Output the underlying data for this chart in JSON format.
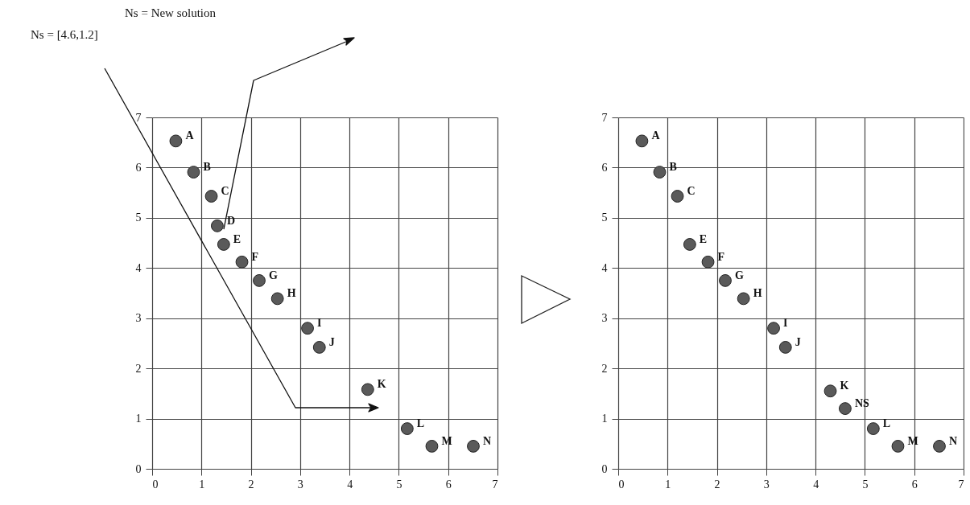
{
  "chart_data": [
    {
      "type": "scatter",
      "annotations": [
        "Ns = New solution",
        "Ns = [4.6,1.2]",
        {
          "text": "A",
          "x": 0.48,
          "y": 6.53
        },
        {
          "text": "B",
          "x": 0.84,
          "y": 5.91
        },
        {
          "text": "C",
          "x": 1.2,
          "y": 5.43
        },
        {
          "text": "D",
          "x": 1.32,
          "y": 4.84
        },
        {
          "text": "E",
          "x": 1.45,
          "y": 4.47
        },
        {
          "text": "F",
          "x": 1.82,
          "y": 4.12
        },
        {
          "text": "G",
          "x": 2.17,
          "y": 3.75
        },
        {
          "text": "H",
          "x": 2.54,
          "y": 3.39
        },
        {
          "text": "I",
          "x": 3.15,
          "y": 2.8
        },
        {
          "text": "J",
          "x": 3.39,
          "y": 2.42
        },
        {
          "text": "K",
          "x": 4.37,
          "y": 1.58
        },
        {
          "text": "L",
          "x": 5.17,
          "y": 0.8
        },
        {
          "text": "M",
          "x": 5.67,
          "y": 0.45
        },
        {
          "text": "N",
          "x": 6.51,
          "y": 0.45
        }
      ],
      "series": [
        {
          "color": "#5a5a5a",
          "x": [
            0.48,
            0.84,
            1.2,
            1.32,
            1.45,
            1.82,
            2.17,
            2.54,
            3.15,
            3.39,
            4.37,
            5.17,
            5.67,
            6.51
          ],
          "values": [
            6.53,
            5.91,
            5.43,
            4.84,
            4.47,
            4.12,
            3.75,
            3.39,
            2.8,
            2.42,
            1.58,
            0.8,
            0.45,
            0.45
          ]
        }
      ],
      "xlim": [
        0,
        7
      ],
      "ylim": [
        0,
        7
      ],
      "xticks": [
        0,
        1,
        2,
        3,
        4,
        5,
        6,
        7
      ],
      "yticks": [
        0,
        1,
        2,
        3,
        4,
        5,
        6,
        7
      ],
      "grid": true,
      "marker": "circle"
    },
    {
      "type": "scatter",
      "annotations": [
        {
          "text": "A",
          "x": 0.48,
          "y": 6.53
        },
        {
          "text": "B",
          "x": 0.84,
          "y": 5.91
        },
        {
          "text": "C",
          "x": 1.2,
          "y": 5.43
        },
        {
          "text": "E",
          "x": 1.45,
          "y": 4.47
        },
        {
          "text": "F",
          "x": 1.82,
          "y": 4.12
        },
        {
          "text": "G",
          "x": 2.17,
          "y": 3.75
        },
        {
          "text": "H",
          "x": 2.54,
          "y": 3.39
        },
        {
          "text": "I",
          "x": 3.15,
          "y": 2.8
        },
        {
          "text": "J",
          "x": 3.39,
          "y": 2.42
        },
        {
          "text": "K",
          "x": 4.3,
          "y": 1.55
        },
        {
          "text": "NS",
          "x": 4.6,
          "y": 1.2
        },
        {
          "text": "L",
          "x": 5.17,
          "y": 0.8
        },
        {
          "text": "M",
          "x": 5.67,
          "y": 0.45
        },
        {
          "text": "N",
          "x": 6.51,
          "y": 0.45
        }
      ],
      "series": [
        {
          "color": "#5a5a5a",
          "x": [
            0.48,
            0.84,
            1.2,
            1.45,
            1.82,
            2.17,
            2.54,
            3.15,
            3.39,
            4.3,
            4.6,
            5.17,
            5.67,
            6.51
          ],
          "values": [
            6.53,
            5.91,
            5.43,
            4.47,
            4.12,
            3.75,
            3.39,
            2.8,
            2.42,
            1.55,
            1.2,
            0.8,
            0.45,
            0.45
          ]
        }
      ],
      "xlim": [
        0,
        7
      ],
      "ylim": [
        0,
        7
      ],
      "xticks": [
        0,
        1,
        2,
        3,
        4,
        5,
        6,
        7
      ],
      "yticks": [
        0,
        1,
        2,
        3,
        4,
        5,
        6,
        7
      ],
      "grid": true,
      "marker": "circle"
    }
  ]
}
